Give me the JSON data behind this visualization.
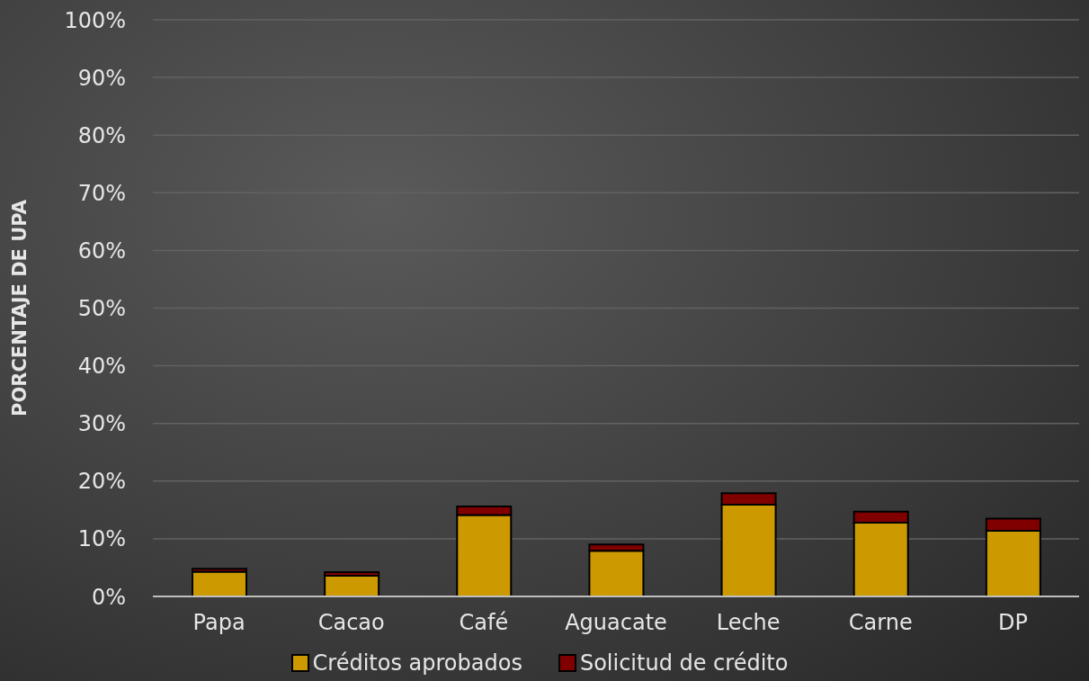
{
  "chart_data": {
    "type": "bar",
    "stacked": true,
    "ylabel": "PORCENTAJE DE UPA",
    "categories": [
      "Papa",
      "Cacao",
      "Café",
      "Aguacate",
      "Leche",
      "Carne",
      "DP"
    ],
    "series": [
      {
        "name": "Créditos aprobados",
        "color": "#cc9900",
        "values": [
          4.3,
          3.6,
          14.1,
          7.9,
          15.9,
          12.8,
          11.4
        ]
      },
      {
        "name": "Solicitud de crédito",
        "color": "#800000",
        "values": [
          0.5,
          0.6,
          1.5,
          1.1,
          2.0,
          1.9,
          2.1
        ]
      }
    ],
    "ylim": [
      0,
      100
    ],
    "yticks": [
      {
        "value": 0,
        "label": "0%"
      },
      {
        "value": 10,
        "label": "10%"
      },
      {
        "value": 20,
        "label": "20%"
      },
      {
        "value": 30,
        "label": "30%"
      },
      {
        "value": 40,
        "label": "40%"
      },
      {
        "value": 50,
        "label": "50%"
      },
      {
        "value": 60,
        "label": "60%"
      },
      {
        "value": 70,
        "label": "70%"
      },
      {
        "value": 80,
        "label": "80%"
      },
      {
        "value": 90,
        "label": "90%"
      },
      {
        "value": 100,
        "label": "100%"
      }
    ],
    "grid": "y",
    "legend": "bottom"
  }
}
